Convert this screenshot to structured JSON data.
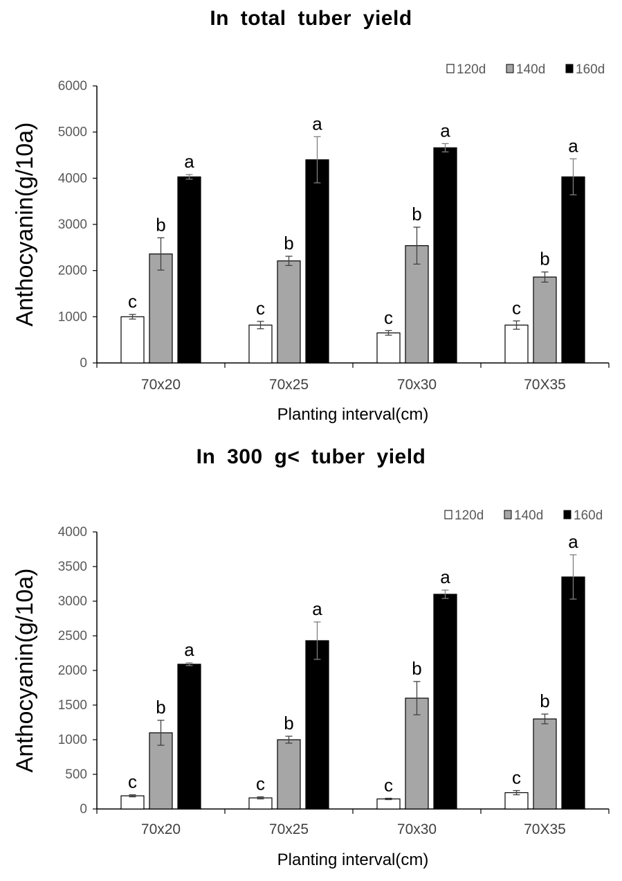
{
  "chart_data": [
    {
      "type": "bar",
      "title": "In total tuber yield",
      "xlabel": "Planting interval(cm)",
      "ylabel": "Anthocyanin(g/10a)",
      "categories": [
        "70x20",
        "70x25",
        "70x30",
        "70X35"
      ],
      "ylim": [
        0,
        6000
      ],
      "yticks": [
        0,
        1000,
        2000,
        3000,
        4000,
        5000,
        6000
      ],
      "legend_position": "top-right",
      "series": [
        {
          "name": "120d",
          "color": "#ffffff",
          "values": [
            1000,
            820,
            650,
            820
          ],
          "errors": [
            50,
            80,
            50,
            90
          ],
          "labels": [
            "c",
            "c",
            "c",
            "c"
          ]
        },
        {
          "name": "140d",
          "color": "#a6a6a6",
          "values": [
            2360,
            2210,
            2540,
            1860
          ],
          "errors": [
            350,
            100,
            400,
            110
          ],
          "labels": [
            "b",
            "b",
            "b",
            "b"
          ]
        },
        {
          "name": "160d",
          "color": "#000000",
          "values": [
            4030,
            4400,
            4660,
            4030
          ],
          "errors": [
            50,
            500,
            90,
            390
          ],
          "labels": [
            "a",
            "a",
            "a",
            "a"
          ]
        }
      ]
    },
    {
      "type": "bar",
      "title": "In 300 g< tuber yield",
      "xlabel": "Planting interval(cm)",
      "ylabel": "Anthocyanin(g/10a)",
      "categories": [
        "70x20",
        "70x25",
        "70x30",
        "70X35"
      ],
      "ylim": [
        0,
        4000
      ],
      "yticks": [
        0,
        500,
        1000,
        1500,
        2000,
        2500,
        3000,
        3500,
        4000
      ],
      "legend_position": "top-right",
      "series": [
        {
          "name": "120d",
          "color": "#ffffff",
          "values": [
            190,
            160,
            145,
            235
          ],
          "errors": [
            15,
            15,
            10,
            30
          ],
          "labels": [
            "c",
            "c",
            "c",
            "c"
          ]
        },
        {
          "name": "140d",
          "color": "#a6a6a6",
          "values": [
            1100,
            1000,
            1600,
            1300
          ],
          "errors": [
            180,
            50,
            240,
            70
          ],
          "labels": [
            "b",
            "b",
            "b",
            "b"
          ]
        },
        {
          "name": "160d",
          "color": "#000000",
          "values": [
            2090,
            2430,
            3100,
            3350
          ],
          "errors": [
            20,
            270,
            60,
            320
          ],
          "labels": [
            "a",
            "a",
            "a",
            "a"
          ]
        }
      ]
    }
  ]
}
